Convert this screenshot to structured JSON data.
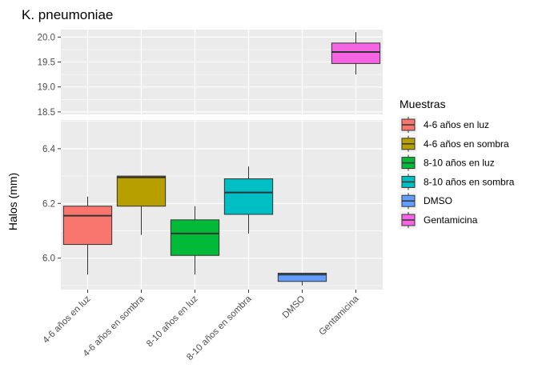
{
  "chart_data": {
    "type": "boxplot",
    "title": "K. pneumoniae",
    "xlabel": "",
    "ylabel": "Halos (mm)",
    "categories": [
      "4-6 años en luz",
      "4-6 años en sombra",
      "8-10 años en luz",
      "8-10 años en sombra",
      "DMSO",
      "Gentamicina"
    ],
    "panels": [
      {
        "name": "upper",
        "ylim": [
          18.45,
          20.15
        ],
        "yticks": [
          "18.5",
          "19.0",
          "19.5",
          "20.0"
        ],
        "tick_values": [
          18.5,
          19.0,
          19.5,
          20.0
        ]
      },
      {
        "name": "lower",
        "ylim": [
          5.885,
          6.505
        ],
        "yticks": [
          "6.0",
          "6.2",
          "6.4"
        ],
        "tick_values": [
          6.0,
          6.2,
          6.4
        ]
      }
    ],
    "series": [
      {
        "category": "4-6 años en luz",
        "panel": "lower",
        "min": 5.94,
        "q1": 6.05,
        "median": 6.155,
        "q3": 6.19,
        "max": 6.225,
        "color": "#F8766D"
      },
      {
        "category": "4-6 años en sombra",
        "panel": "lower",
        "min": 6.085,
        "q1": 6.19,
        "median": 6.295,
        "q3": 6.3,
        "max": 6.3,
        "color": "#B79F00"
      },
      {
        "category": "8-10 años en luz",
        "panel": "lower",
        "min": 5.94,
        "q1": 6.01,
        "median": 6.09,
        "q3": 6.14,
        "max": 6.19,
        "color": "#00BA38"
      },
      {
        "category": "8-10 años en sombra",
        "panel": "lower",
        "min": 6.09,
        "q1": 6.16,
        "median": 6.24,
        "q3": 6.29,
        "max": 6.335,
        "color": "#00BFC4"
      },
      {
        "category": "DMSO",
        "panel": "lower",
        "min": 5.9,
        "q1": 5.915,
        "median": 5.94,
        "q3": 5.945,
        "max": 5.945,
        "color": "#619CFF"
      },
      {
        "category": "Gentamicina",
        "panel": "upper",
        "min": 19.25,
        "q1": 19.47,
        "median": 19.7,
        "q3": 19.88,
        "max": 20.1,
        "color": "#F564E3"
      }
    ],
    "legend": {
      "title": "Muestras",
      "position": "right",
      "items": [
        {
          "label": "4-6 años en luz",
          "color": "#F8766D"
        },
        {
          "label": "4-6 años en sombra",
          "color": "#B79F00"
        },
        {
          "label": "8-10 años en luz",
          "color": "#00BA38"
        },
        {
          "label": "8-10 años en sombra",
          "color": "#00BFC4"
        },
        {
          "label": "DMSO",
          "color": "#619CFF"
        },
        {
          "label": "Gentamicina",
          "color": "#F564E3"
        }
      ]
    },
    "grid": true,
    "background": "#EBEBEB"
  }
}
